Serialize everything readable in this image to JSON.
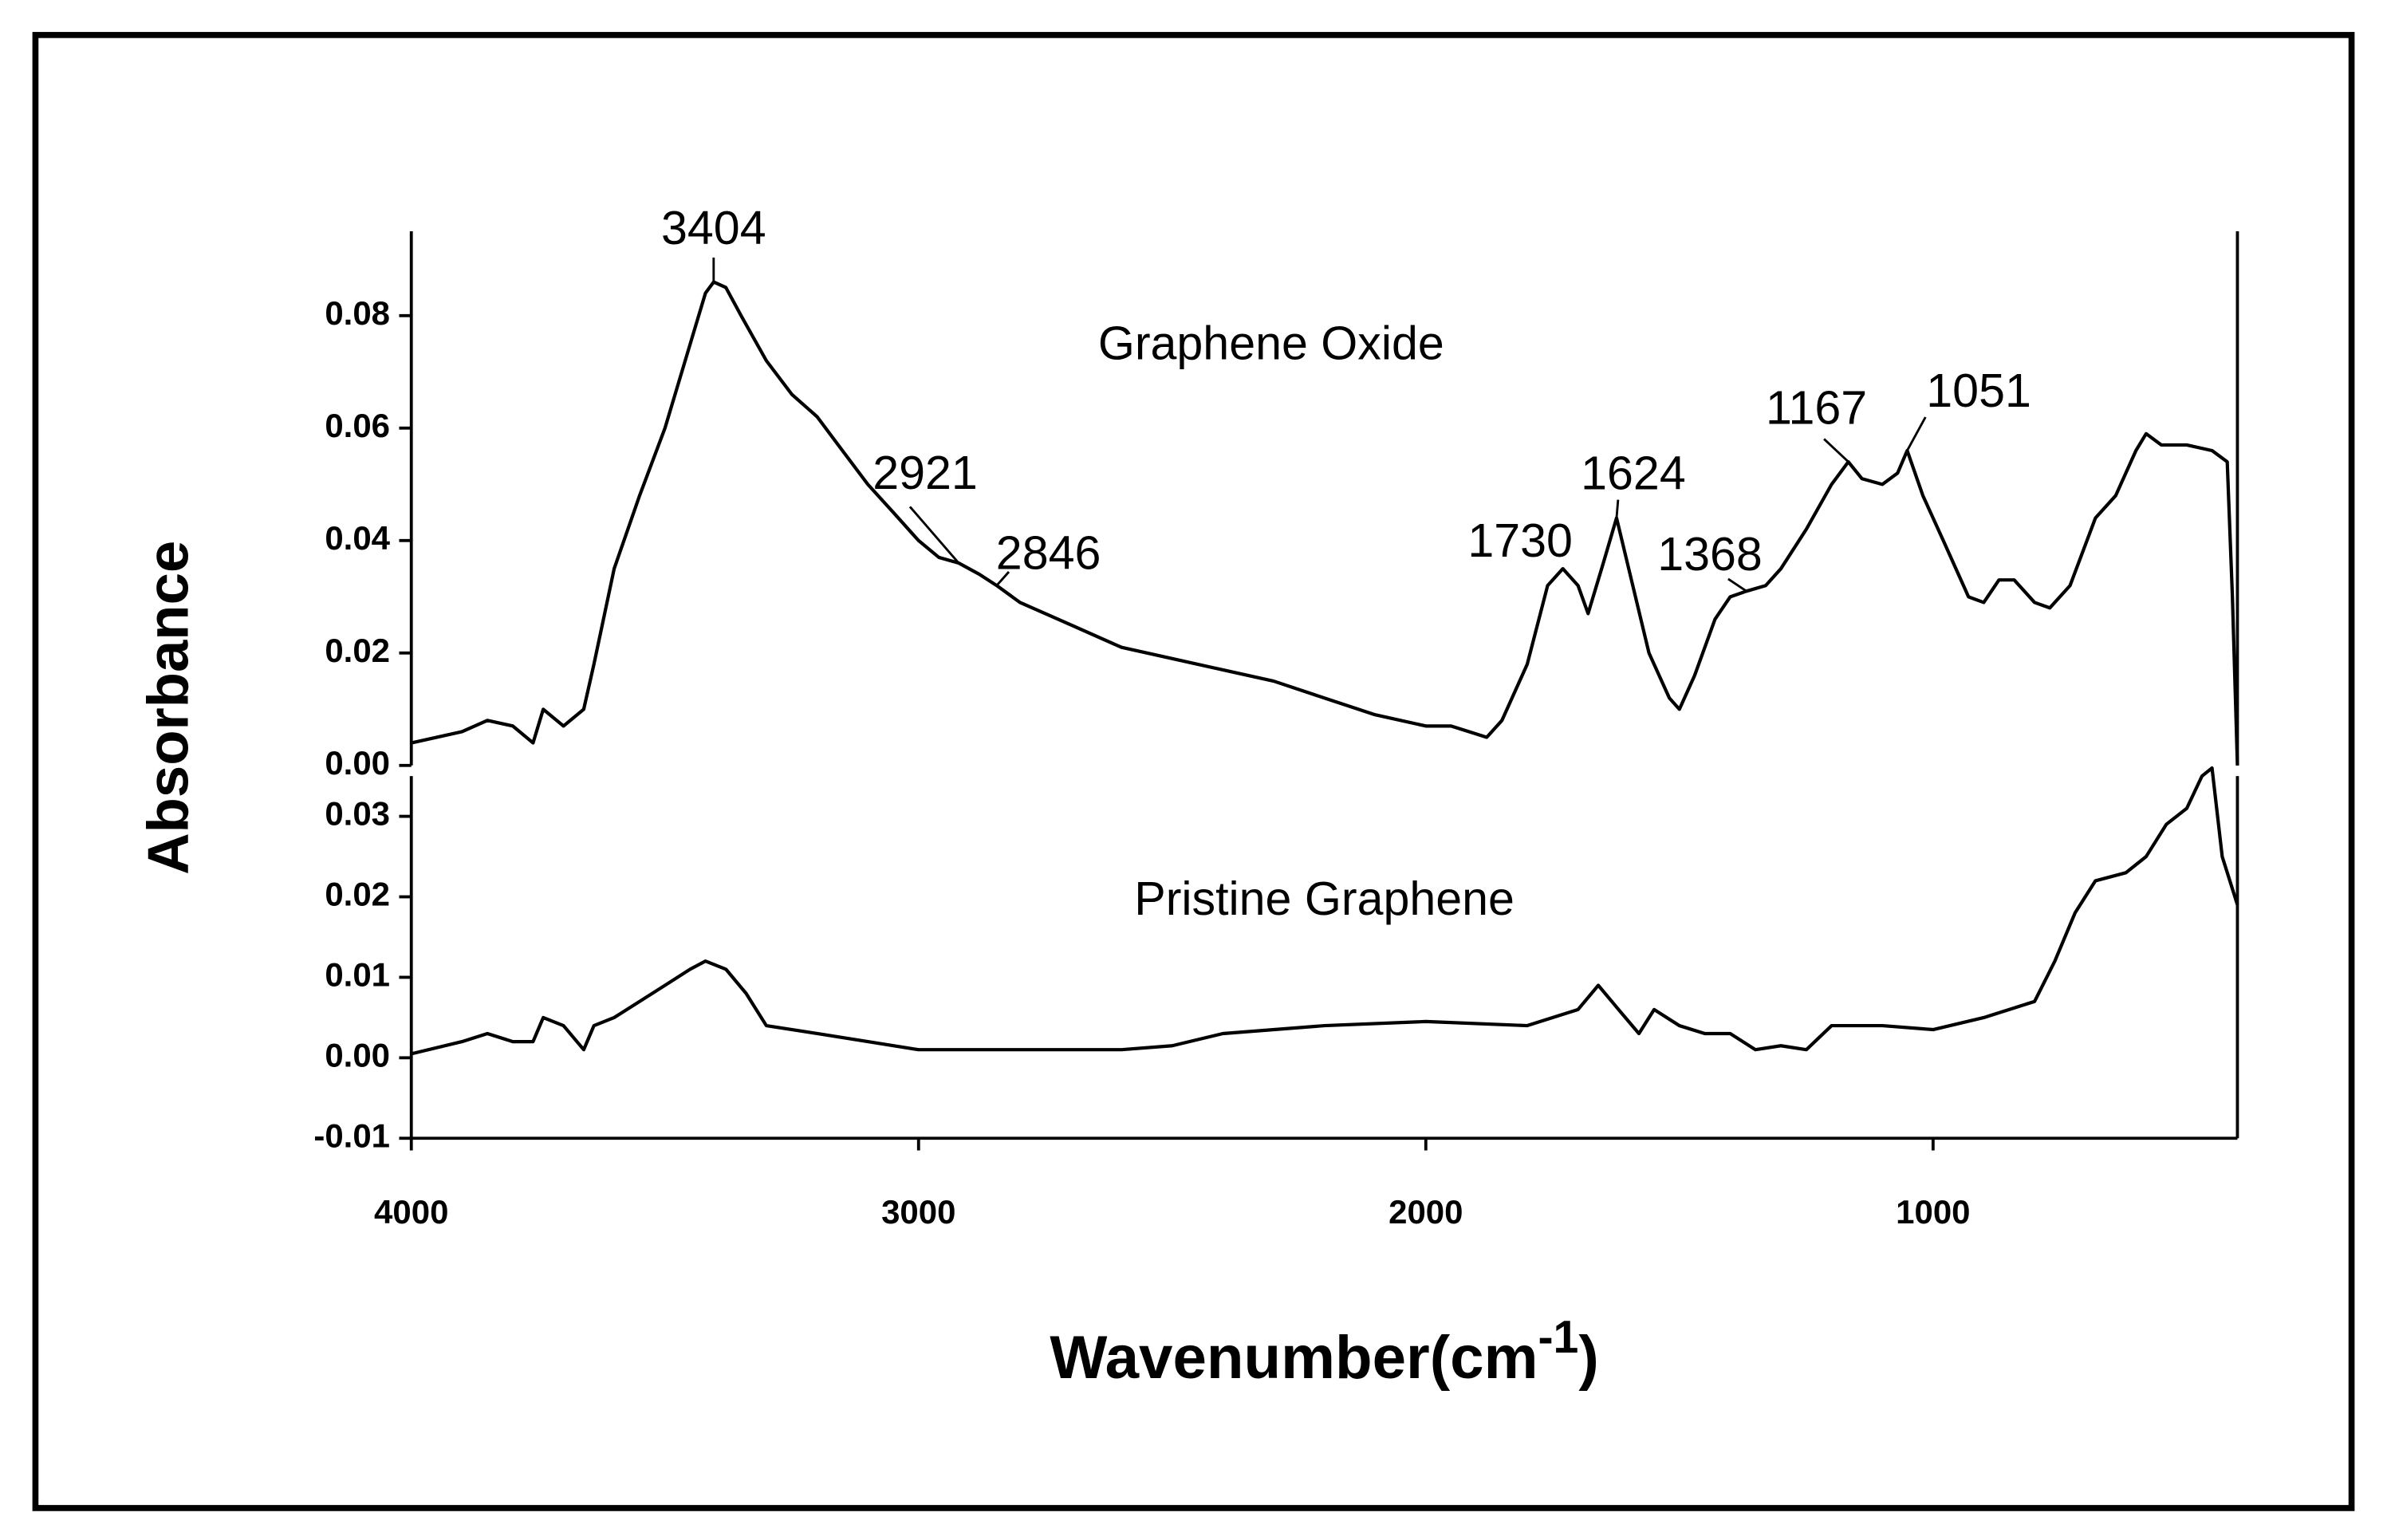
{
  "chart_data": [
    {
      "type": "line",
      "ylabel": "Absorbance",
      "xlim": [
        4000,
        400
      ],
      "ylim": [
        0,
        0.095
      ],
      "yticks": [
        {
          "value": 0,
          "label": "0.00"
        },
        {
          "value": 0.02,
          "label": "0.02"
        },
        {
          "value": 0.04,
          "label": "0.04"
        },
        {
          "value": 0.06,
          "label": "0.06"
        },
        {
          "value": 0.08,
          "label": "0.08"
        }
      ],
      "x": [
        4000,
        3900,
        3850,
        3800,
        3760,
        3740,
        3700,
        3660,
        3640,
        3600,
        3550,
        3500,
        3450,
        3420,
        3404,
        3380,
        3350,
        3300,
        3250,
        3200,
        3150,
        3100,
        3050,
        3000,
        2960,
        2921,
        2880,
        2846,
        2800,
        2700,
        2600,
        2500,
        2400,
        2300,
        2200,
        2100,
        2000,
        1950,
        1880,
        1850,
        1800,
        1760,
        1730,
        1700,
        1680,
        1650,
        1624,
        1600,
        1560,
        1520,
        1500,
        1470,
        1430,
        1400,
        1368,
        1330,
        1300,
        1250,
        1200,
        1167,
        1140,
        1100,
        1070,
        1051,
        1020,
        980,
        930,
        900,
        870,
        840,
        800,
        770,
        730,
        680,
        640,
        600,
        580,
        550,
        500,
        450,
        420,
        410,
        400
      ],
      "series": [
        {
          "name": "Graphene Oxide",
          "color": "#000000",
          "values": [
            0.004,
            0.006,
            0.008,
            0.007,
            0.004,
            0.01,
            0.007,
            0.01,
            0.018,
            0.035,
            0.048,
            0.06,
            0.075,
            0.084,
            0.086,
            0.085,
            0.08,
            0.072,
            0.066,
            0.062,
            0.056,
            0.05,
            0.045,
            0.04,
            0.037,
            0.036,
            0.034,
            0.032,
            0.029,
            0.025,
            0.021,
            0.019,
            0.017,
            0.015,
            0.012,
            0.009,
            0.007,
            0.007,
            0.005,
            0.008,
            0.018,
            0.032,
            0.035,
            0.032,
            0.027,
            0.036,
            0.044,
            0.035,
            0.02,
            0.012,
            0.01,
            0.016,
            0.026,
            0.03,
            0.031,
            0.032,
            0.035,
            0.042,
            0.05,
            0.054,
            0.051,
            0.05,
            0.052,
            0.056,
            0.048,
            0.04,
            0.03,
            0.029,
            0.033,
            0.033,
            0.029,
            0.028,
            0.032,
            0.044,
            0.048,
            0.056,
            0.059,
            0.057,
            0.057,
            0.056,
            0.054,
            0.03,
            0.0
          ]
        }
      ],
      "annotations": [
        {
          "x": 3404,
          "y": 0.086
        },
        {
          "x": 2921,
          "y": 0.036
        },
        {
          "x": 2846,
          "y": 0.032
        },
        {
          "x": 1730,
          "y": 0.035
        },
        {
          "x": 1624,
          "y": 0.044
        },
        {
          "x": 1368,
          "y": 0.031
        },
        {
          "x": 1167,
          "y": 0.054
        },
        {
          "x": 1051,
          "y": 0.056
        }
      ]
    },
    {
      "type": "line",
      "xlabel": [
        "Wavenumber(cm",
        "-1",
        ")"
      ],
      "xlim": [
        4000,
        400
      ],
      "ylim": [
        -0.01,
        0.035
      ],
      "xticks": [
        4000,
        3000,
        2000,
        1000
      ],
      "yticks": [
        {
          "value": -0.01,
          "label": "-0.01"
        },
        {
          "value": 0,
          "label": "0.00"
        },
        {
          "value": 0.01,
          "label": "0.01"
        },
        {
          "value": 0.02,
          "label": "0.02"
        },
        {
          "value": 0.03,
          "label": "0.03"
        }
      ],
      "x": [
        4000,
        3900,
        3850,
        3800,
        3760,
        3740,
        3700,
        3660,
        3640,
        3600,
        3550,
        3500,
        3450,
        3420,
        3380,
        3340,
        3300,
        3200,
        3100,
        3000,
        2900,
        2800,
        2600,
        2500,
        2400,
        2200,
        2000,
        1800,
        1700,
        1660,
        1620,
        1580,
        1550,
        1500,
        1450,
        1400,
        1350,
        1300,
        1250,
        1200,
        1100,
        1000,
        900,
        850,
        800,
        760,
        720,
        680,
        620,
        580,
        540,
        500,
        470,
        450,
        430,
        400
      ],
      "series": [
        {
          "name": "Pristine Graphene",
          "color": "#000000",
          "values": [
            0.0005,
            0.002,
            0.003,
            0.002,
            0.002,
            0.005,
            0.004,
            0.001,
            0.004,
            0.005,
            0.007,
            0.009,
            0.011,
            0.012,
            0.011,
            0.008,
            0.004,
            0.003,
            0.002,
            0.001,
            0.001,
            0.001,
            0.001,
            0.0015,
            0.003,
            0.004,
            0.0045,
            0.004,
            0.006,
            0.009,
            0.006,
            0.003,
            0.006,
            0.004,
            0.003,
            0.003,
            0.001,
            0.0015,
            0.001,
            0.004,
            0.004,
            0.0035,
            0.005,
            0.006,
            0.007,
            0.012,
            0.018,
            0.022,
            0.023,
            0.025,
            0.029,
            0.031,
            0.035,
            0.036,
            0.025,
            0.019
          ]
        }
      ]
    }
  ]
}
